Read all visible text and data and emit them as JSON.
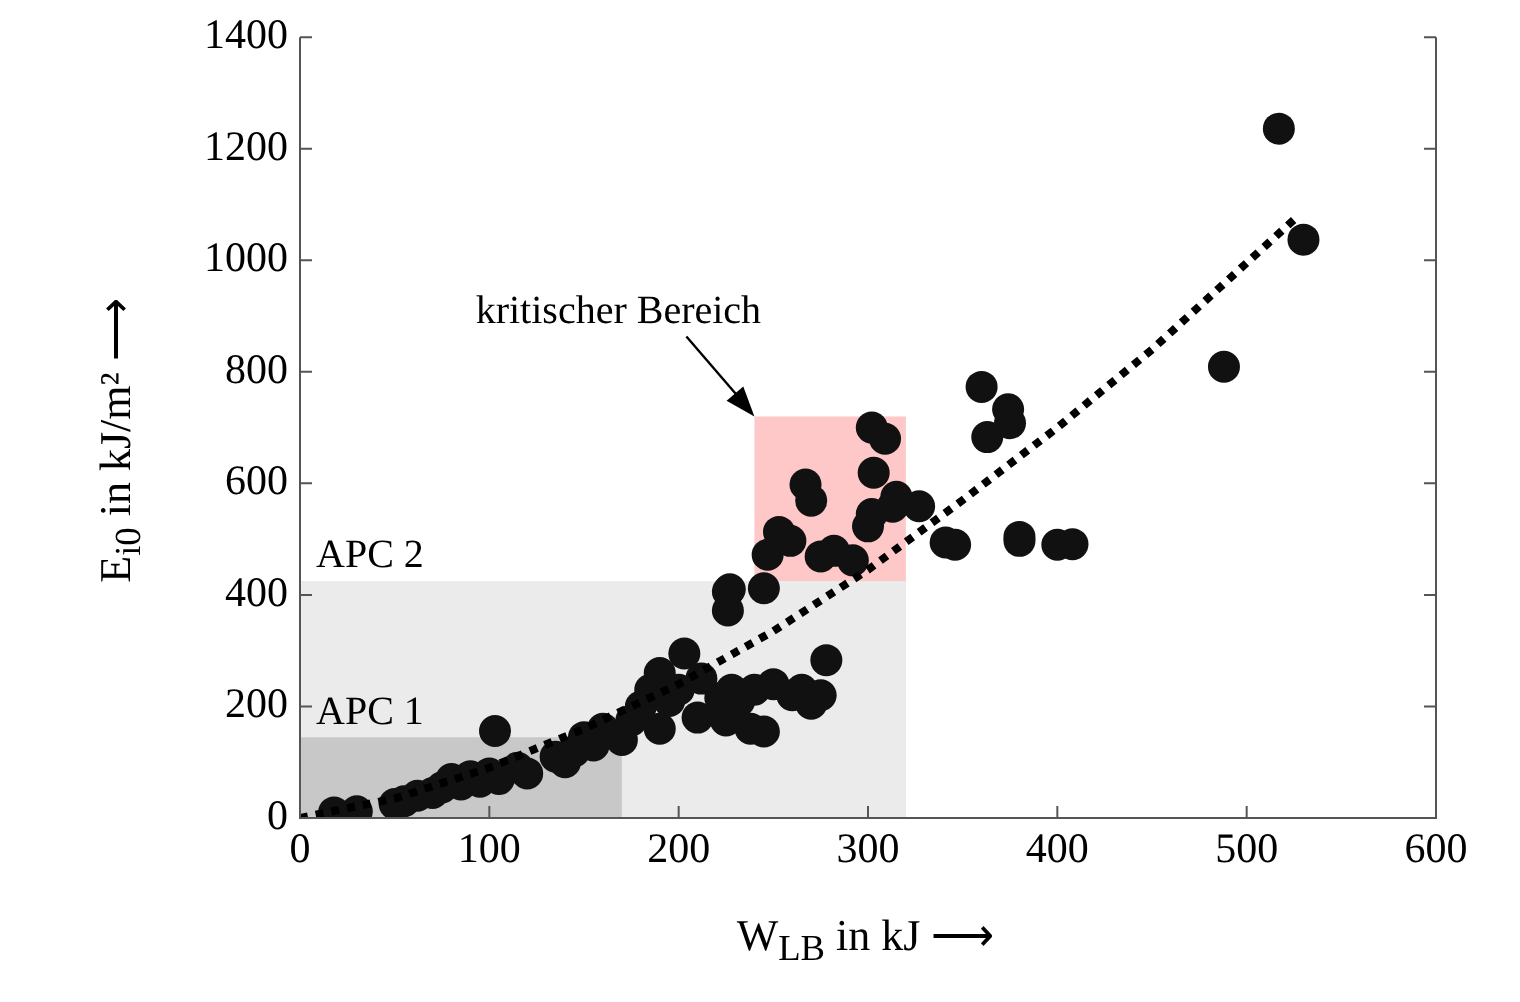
{
  "chart_data": {
    "type": "scatter",
    "xlabel": "W$_{LB}$ in kJ ⟶",
    "ylabel": "E$_{i0}$ in kJ/m² ⟶",
    "xlim": [
      0,
      600
    ],
    "xticks": [
      0,
      100,
      200,
      300,
      400,
      500,
      600
    ],
    "ylim": [
      0,
      1400
    ],
    "yticks": [
      0,
      200,
      400,
      600,
      800,
      1000,
      1200,
      1400
    ],
    "grid": false,
    "legend": false,
    "marker": "circle",
    "annotations": [
      {
        "text": "kritischer Bereich",
        "x": 240,
        "y": 720
      }
    ],
    "series": [
      {
        "type": "area",
        "color": "#ffc8c8",
        "marker": "none",
        "x": [
          240,
          320
        ],
        "values": [
          720,
          720
        ]
      },
      {
        "type": "area",
        "name": "APC 2",
        "color": "#ebebeb",
        "marker": "none",
        "x": [
          0,
          320
        ],
        "values": [
          425,
          425
        ]
      },
      {
        "type": "area",
        "name": "APC 1",
        "color": "#c8c8c8",
        "marker": "none",
        "x": [
          0,
          170
        ],
        "values": [
          145,
          145
        ]
      },
      {
        "type": "scatter",
        "color": "#111111",
        "x": [
          18,
          30,
          50,
          55,
          62,
          70,
          75,
          80,
          85,
          90,
          95,
          100,
          103,
          105,
          115,
          120,
          135,
          140,
          145,
          150,
          155,
          160,
          170,
          175,
          180,
          185,
          190,
          195,
          200,
          203,
          210,
          212,
          222,
          225,
          228,
          232,
          238,
          240,
          226,
          226,
          190,
          250,
          260,
          265,
          270,
          278,
          275,
          245,
          227,
          245,
          247,
          253,
          259,
          267,
          270,
          275,
          282,
          292,
          300,
          302,
          303,
          302,
          309,
          315,
          313,
          327,
          341,
          346,
          360,
          363,
          374,
          375,
          380,
          380,
          400,
          408,
          488,
          517,
          530
        ],
        "values": [
          10,
          12,
          25,
          30,
          40,
          45,
          55,
          70,
          60,
          75,
          65,
          80,
          156,
          70,
          90,
          80,
          110,
          100,
          120,
          145,
          130,
          160,
          140,
          175,
          200,
          230,
          260,
          210,
          230,
          295,
          180,
          250,
          215,
          175,
          230,
          210,
          160,
          230,
          406,
          372,
          160,
          240,
          220,
          230,
          205,
          283,
          220,
          155,
          410,
          412,
          472,
          513,
          497,
          598,
          569,
          469,
          479,
          462,
          523,
          545,
          619,
          700,
          680,
          576,
          558,
          559,
          494,
          490,
          773,
          683,
          733,
          708,
          504,
          497,
          490,
          491,
          809,
          1236,
          1037
        ]
      },
      {
        "type": "line",
        "color": "#000000",
        "line_style": "dotted",
        "marker": "none",
        "x": [
          0,
          50,
          100,
          150,
          200,
          250,
          300,
          350,
          400,
          450,
          526
        ],
        "values": [
          0,
          35,
          90,
          160,
          240,
          335,
          445,
          570,
          700,
          840,
          1076
        ]
      }
    ]
  }
}
